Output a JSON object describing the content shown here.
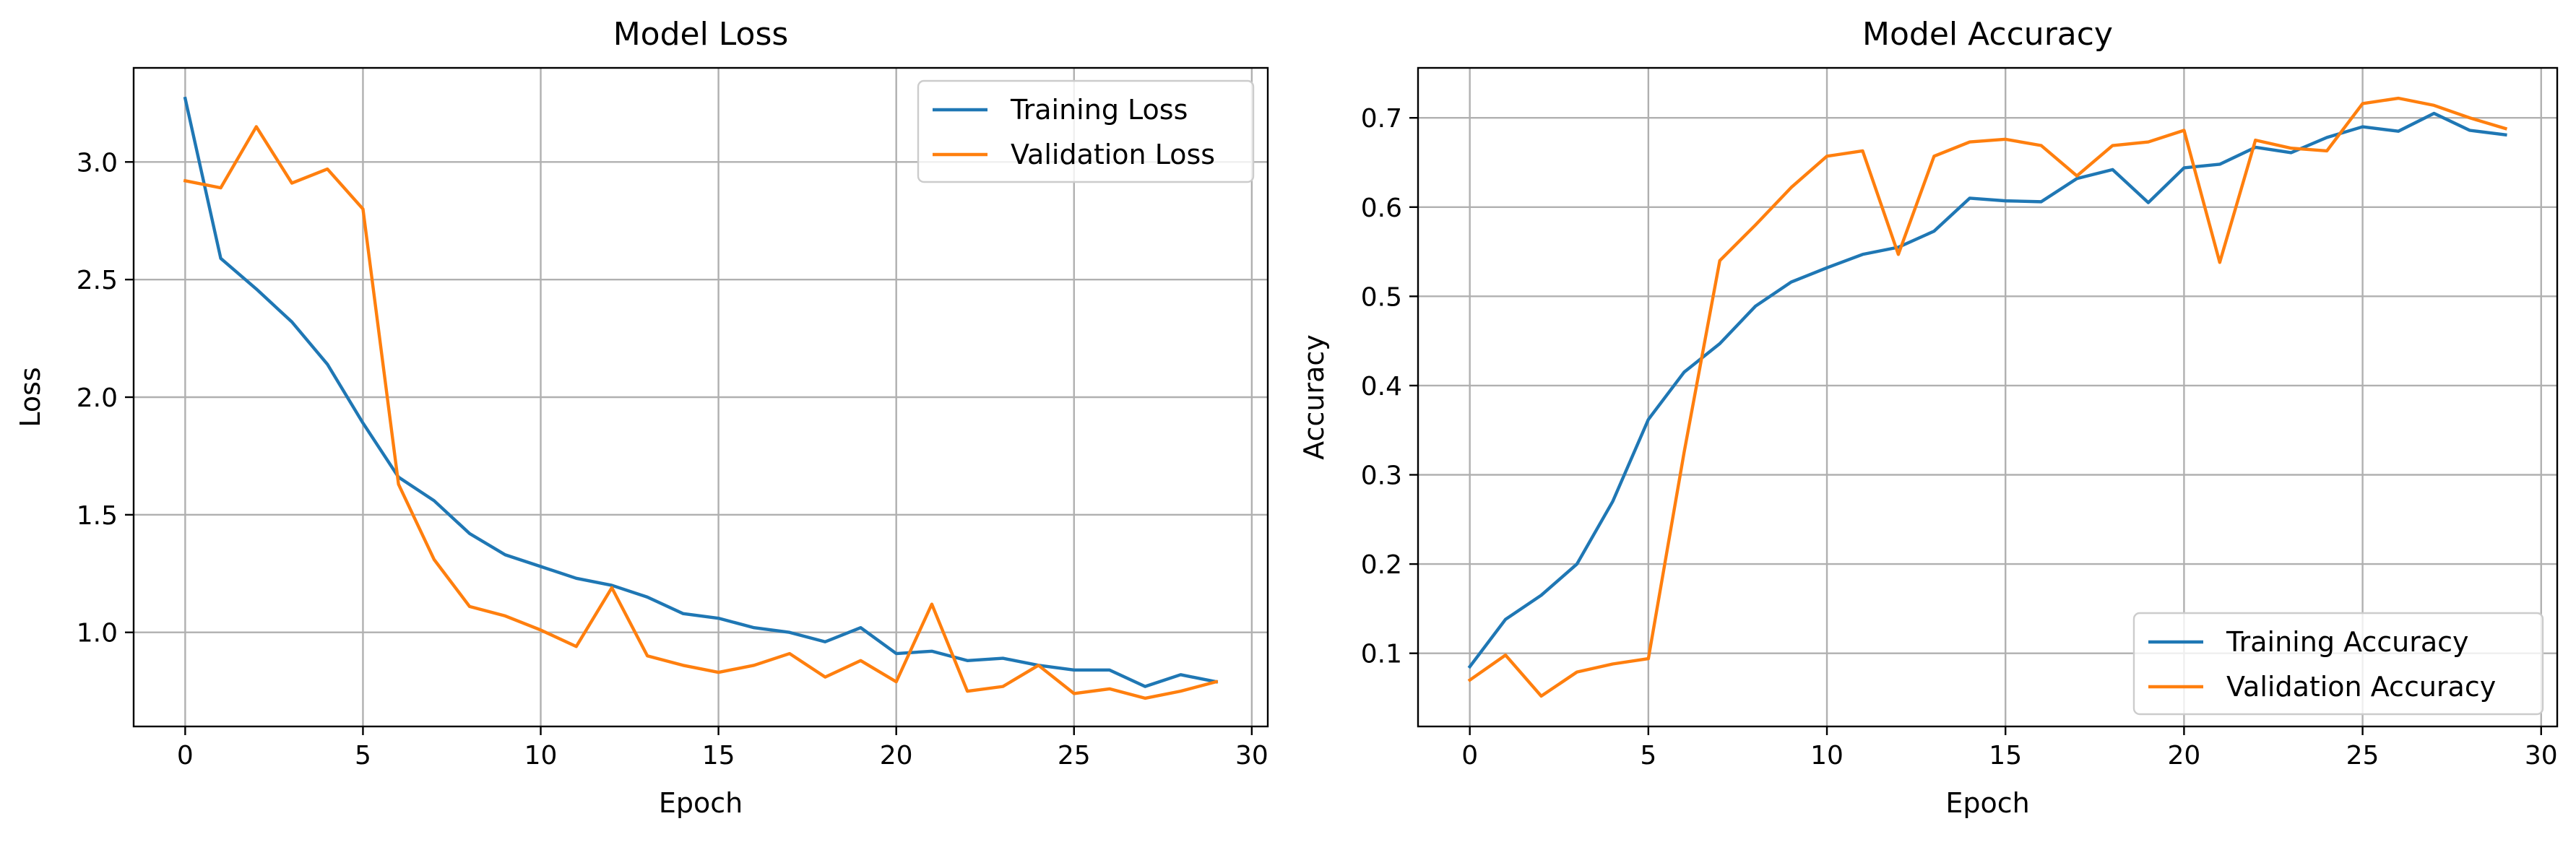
{
  "chart_data": [
    {
      "type": "line",
      "title": "Model Loss",
      "xlabel": "Epoch",
      "ylabel": "Loss",
      "xlim": [
        -1.45,
        30.45
      ],
      "ylim": [
        0.6,
        3.4
      ],
      "xticks": [
        0,
        5,
        10,
        15,
        20,
        25,
        30
      ],
      "yticks": [
        1.0,
        1.5,
        2.0,
        2.5,
        3.0
      ],
      "xtick_labels": [
        "0",
        "5",
        "10",
        "15",
        "20",
        "25",
        "30"
      ],
      "ytick_labels": [
        "1.0",
        "1.5",
        "2.0",
        "2.5",
        "3.0"
      ],
      "grid": true,
      "legend_position": "upper right",
      "x": [
        0,
        1,
        2,
        3,
        4,
        5,
        6,
        7,
        8,
        9,
        10,
        11,
        12,
        13,
        14,
        15,
        16,
        17,
        18,
        19,
        20,
        21,
        22,
        23,
        24,
        25,
        26,
        27,
        28,
        29
      ],
      "series": [
        {
          "name": "Training Loss",
          "color": "#1f77b4",
          "values": [
            3.27,
            2.59,
            2.46,
            2.32,
            2.14,
            1.89,
            1.66,
            1.56,
            1.42,
            1.33,
            1.28,
            1.23,
            1.2,
            1.15,
            1.08,
            1.06,
            1.02,
            1.0,
            0.96,
            1.02,
            0.91,
            0.92,
            0.88,
            0.89,
            0.86,
            0.84,
            0.84,
            0.77,
            0.82,
            0.79
          ]
        },
        {
          "name": "Validation Loss",
          "color": "#ff7f0e",
          "values": [
            2.92,
            2.89,
            3.15,
            2.91,
            2.97,
            2.8,
            1.63,
            1.31,
            1.11,
            1.07,
            1.01,
            0.94,
            1.19,
            0.9,
            0.86,
            0.83,
            0.86,
            0.91,
            0.81,
            0.88,
            0.79,
            1.12,
            0.75,
            0.77,
            0.86,
            0.74,
            0.76,
            0.72,
            0.75,
            0.79
          ]
        }
      ]
    },
    {
      "type": "line",
      "title": "Model Accuracy",
      "xlabel": "Epoch",
      "ylabel": "Accuracy",
      "xlim": [
        -1.45,
        30.45
      ],
      "ylim": [
        0.018,
        0.756
      ],
      "xticks": [
        0,
        5,
        10,
        15,
        20,
        25,
        30
      ],
      "yticks": [
        0.1,
        0.2,
        0.3,
        0.4,
        0.5,
        0.6,
        0.7
      ],
      "xtick_labels": [
        "0",
        "5",
        "10",
        "15",
        "20",
        "25",
        "30"
      ],
      "ytick_labels": [
        "0.1",
        "0.2",
        "0.3",
        "0.4",
        "0.5",
        "0.6",
        "0.7"
      ],
      "grid": true,
      "legend_position": "lower right",
      "x": [
        0,
        1,
        2,
        3,
        4,
        5,
        6,
        7,
        8,
        9,
        10,
        11,
        12,
        13,
        14,
        15,
        16,
        17,
        18,
        19,
        20,
        21,
        22,
        23,
        24,
        25,
        26,
        27,
        28,
        29
      ],
      "series": [
        {
          "name": "Training Accuracy",
          "color": "#1f77b4",
          "values": [
            0.085,
            0.138,
            0.165,
            0.2,
            0.27,
            0.362,
            0.415,
            0.447,
            0.489,
            0.516,
            0.532,
            0.547,
            0.555,
            0.573,
            0.61,
            0.607,
            0.606,
            0.632,
            0.642,
            0.605,
            0.644,
            0.648,
            0.667,
            0.661,
            0.678,
            0.69,
            0.685,
            0.705,
            0.686,
            0.681
          ]
        },
        {
          "name": "Validation Accuracy",
          "color": "#ff7f0e",
          "values": [
            0.07,
            0.098,
            0.052,
            0.079,
            0.088,
            0.094,
            0.325,
            0.54,
            0.58,
            0.622,
            0.657,
            0.663,
            0.547,
            0.657,
            0.673,
            0.676,
            0.669,
            0.635,
            0.669,
            0.673,
            0.686,
            0.538,
            0.675,
            0.666,
            0.663,
            0.716,
            0.722,
            0.714,
            0.7,
            0.688
          ]
        }
      ]
    }
  ]
}
